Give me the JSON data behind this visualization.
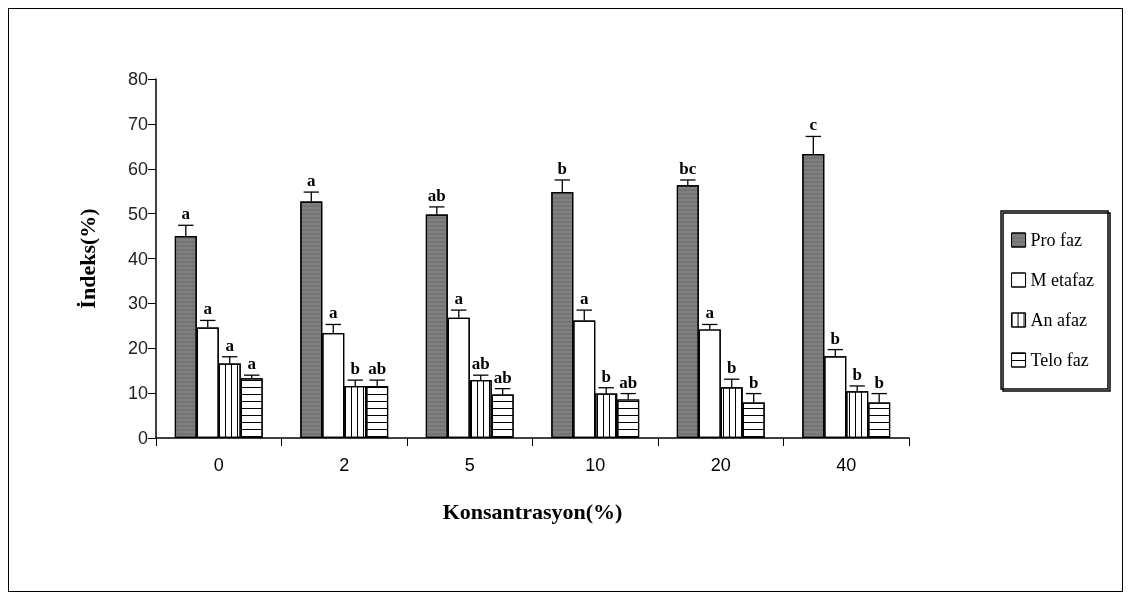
{
  "chart_data": {
    "type": "bar",
    "xlabel": "Konsantrasyon(%)",
    "ylabel": "İndeks(%)",
    "categories": [
      "0",
      "2",
      "5",
      "10",
      "20",
      "40"
    ],
    "series": [
      {
        "name": "Pro faz",
        "color": "#808080",
        "values": [
          45.0,
          52.7,
          49.8,
          54.8,
          56.3,
          63.3
        ],
        "errors": [
          [
            45.0,
            47.4
          ],
          [
            52.7,
            54.8
          ],
          [
            49.8,
            51.5
          ],
          [
            54.8,
            57.5
          ],
          [
            56.3,
            57.5
          ],
          [
            63.3,
            67.2
          ]
        ],
        "value_labels": [
          "a",
          "a",
          "ab",
          "b",
          "bc",
          "c"
        ]
      },
      {
        "name": "M etafaz",
        "color": "#ffffff",
        "values": [
          24.6,
          23.4,
          26.8,
          26.2,
          24.2,
          18.2
        ],
        "errors": [
          [
            24.6,
            26.2
          ],
          [
            23.4,
            25.3
          ],
          [
            26.8,
            28.5
          ],
          [
            26.2,
            28.5
          ],
          [
            24.2,
            25.3
          ],
          [
            18.2,
            19.7
          ]
        ],
        "value_labels": [
          "a",
          "a",
          "a",
          "a",
          "a",
          "b"
        ]
      },
      {
        "name": "An afaz",
        "color": "#ffffff",
        "values": [
          16.6,
          11.6,
          12.9,
          9.9,
          11.3,
          10.4
        ],
        "errors": [
          [
            16.6,
            18.1
          ],
          [
            11.6,
            12.9
          ],
          [
            12.9,
            14.0
          ],
          [
            9.9,
            11.2
          ],
          [
            11.3,
            13.1
          ],
          [
            10.4,
            11.6
          ]
        ],
        "value_labels": [
          "a",
          "b",
          "ab",
          "b",
          "b",
          "b"
        ]
      },
      {
        "name": "Telo faz",
        "color": "#ffffff",
        "values": [
          13.3,
          11.6,
          9.7,
          8.6,
          7.9,
          7.9
        ],
        "errors": [
          [
            13.3,
            14.0
          ],
          [
            11.6,
            12.9
          ],
          [
            9.7,
            11.0
          ],
          [
            8.6,
            9.9
          ],
          [
            7.9,
            9.9
          ],
          [
            7.9,
            9.9
          ]
        ],
        "value_labels": [
          "a",
          "ab",
          "ab",
          "ab",
          "b",
          "b"
        ]
      }
    ],
    "ylim": [
      0,
      80
    ],
    "yticks": [
      0,
      10,
      20,
      30,
      40,
      50,
      60,
      70,
      80
    ],
    "grid": false,
    "legend": "right"
  }
}
